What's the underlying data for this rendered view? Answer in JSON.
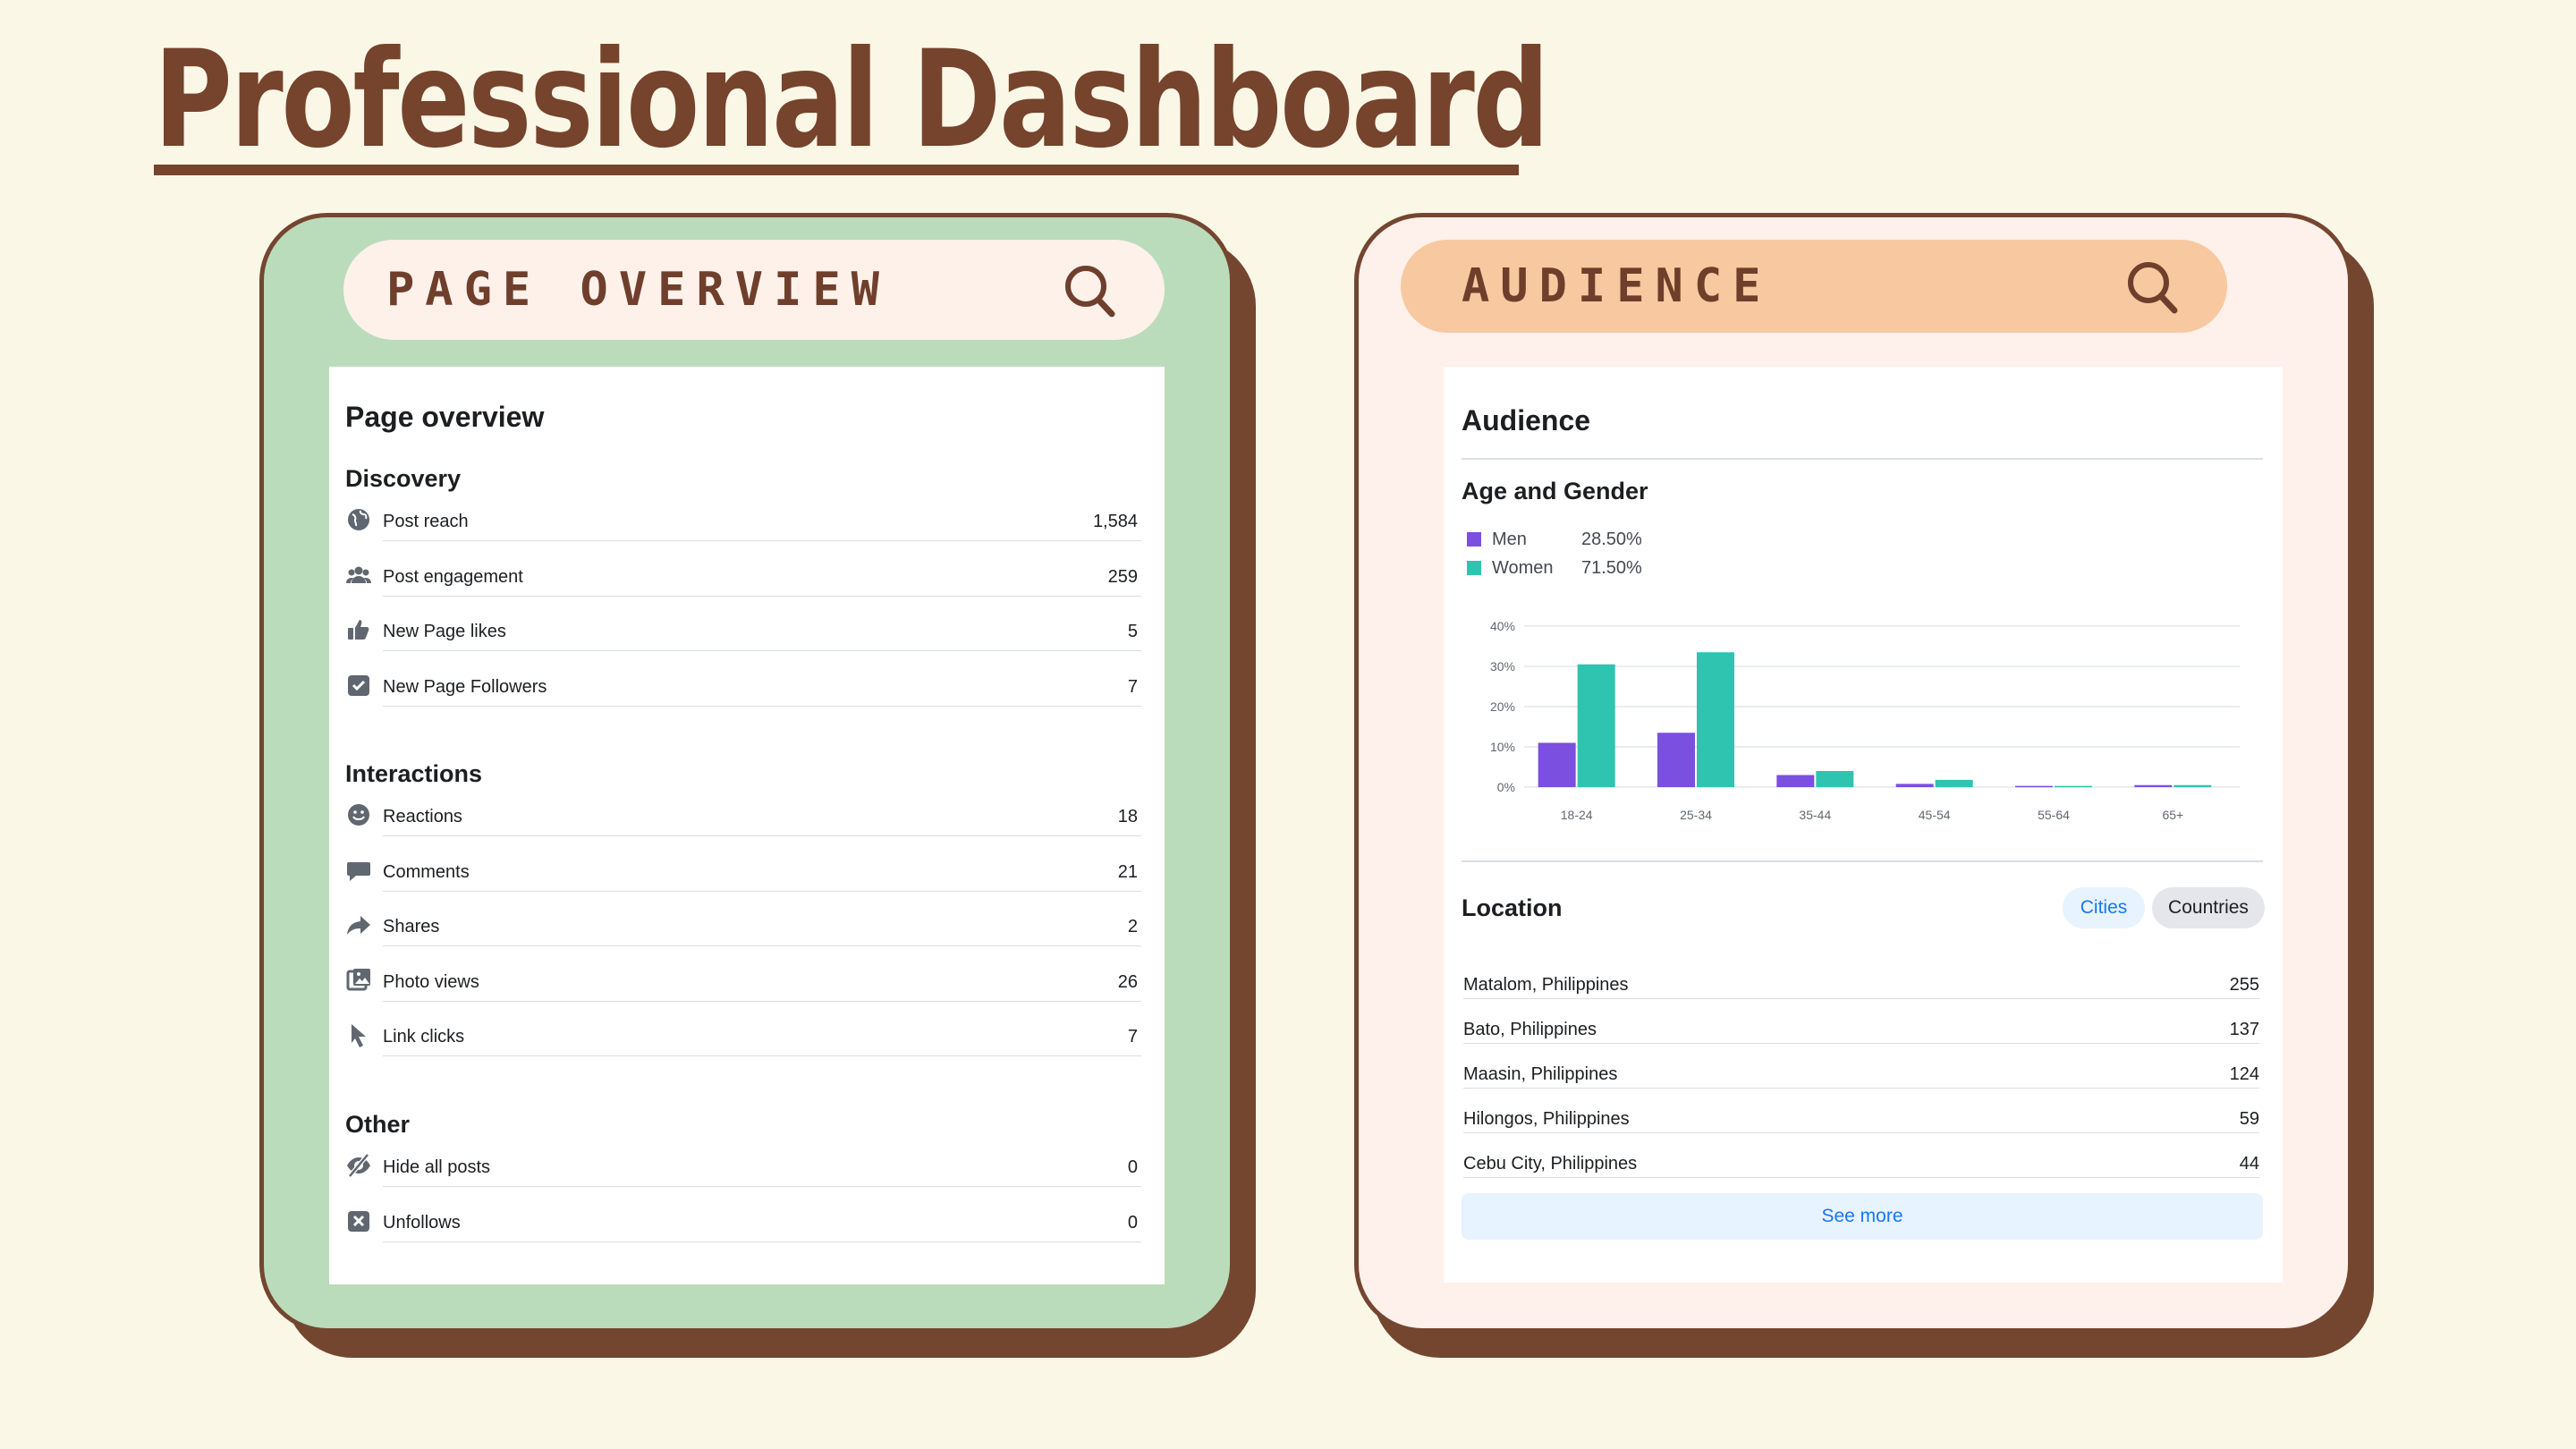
{
  "page_title": "Professional Dashboard",
  "page_overview_card": {
    "header_label": "PAGE OVERVIEW",
    "panel_title": "Page overview",
    "sections": [
      {
        "title": "Discovery",
        "rows": [
          {
            "icon": "globe-icon",
            "label": "Post reach",
            "value": "1,584"
          },
          {
            "icon": "people-icon",
            "label": "Post engagement",
            "value": "259"
          },
          {
            "icon": "thumbs-up-icon",
            "label": "New Page likes",
            "value": "5"
          },
          {
            "icon": "check-box-icon",
            "label": "New Page Followers",
            "value": "7"
          }
        ]
      },
      {
        "title": "Interactions",
        "rows": [
          {
            "icon": "smiley-icon",
            "label": "Reactions",
            "value": "18"
          },
          {
            "icon": "comment-icon",
            "label": "Comments",
            "value": "21"
          },
          {
            "icon": "share-icon",
            "label": "Shares",
            "value": "2"
          },
          {
            "icon": "photo-icon",
            "label": "Photo views",
            "value": "26"
          },
          {
            "icon": "cursor-icon",
            "label": "Link clicks",
            "value": "7"
          }
        ]
      },
      {
        "title": "Other",
        "rows": [
          {
            "icon": "eye-slash-icon",
            "label": "Hide all posts",
            "value": "0"
          },
          {
            "icon": "x-box-icon",
            "label": "Unfollows",
            "value": "0"
          }
        ]
      }
    ]
  },
  "audience_card": {
    "header_label": "AUDIENCE",
    "panel_title": "Audience",
    "age_gender_title": "Age and Gender",
    "legend": [
      {
        "name": "Men",
        "percent": "28.50%",
        "color": "#7b4fe0"
      },
      {
        "name": "Women",
        "percent": "71.50%",
        "color": "#2ec4b0"
      }
    ],
    "location_title": "Location",
    "toggle_cities": "Cities",
    "toggle_countries": "Countries",
    "locations": [
      {
        "name": "Matalom, Philippines",
        "value": "255"
      },
      {
        "name": "Bato, Philippines",
        "value": "137"
      },
      {
        "name": "Maasin, Philippines",
        "value": "124"
      },
      {
        "name": "Hilongos, Philippines",
        "value": "59"
      },
      {
        "name": "Cebu City, Philippines",
        "value": "44"
      }
    ],
    "see_more_label": "See more"
  },
  "chart_data": {
    "type": "bar",
    "categories": [
      "18-24",
      "25-34",
      "35-44",
      "45-54",
      "55-64",
      "65+"
    ],
    "series": [
      {
        "name": "Men",
        "color": "#7b4fe0",
        "values": [
          11,
          13.5,
          3,
          0.8,
          0.3,
          0.5
        ]
      },
      {
        "name": "Women",
        "color": "#2ec4b0",
        "values": [
          30.5,
          33.5,
          4,
          1.8,
          0.3,
          0.5
        ]
      }
    ],
    "yticks": [
      "0%",
      "10%",
      "20%",
      "30%",
      "40%"
    ],
    "ylim": [
      0,
      40
    ],
    "grid": true
  }
}
